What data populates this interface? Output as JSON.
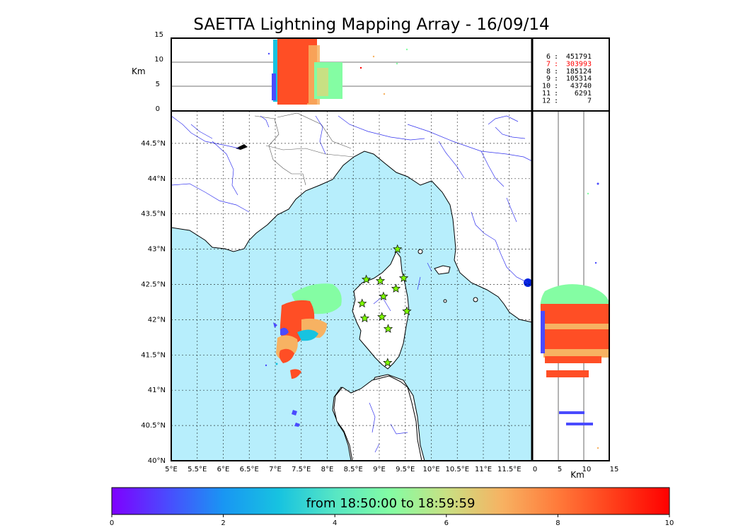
{
  "title": "SAETTA Lightning Mapping Array - 16/09/14",
  "alt_panel": {
    "ylabel": "Km",
    "yticks": [
      "15",
      "10",
      "5",
      "0"
    ]
  },
  "side_panel": {
    "xlabel": "Km",
    "xticks": [
      "0",
      "5",
      "10",
      "15"
    ]
  },
  "station_counts": [
    {
      "stations": "6",
      "count": "451791",
      "color": "#000000"
    },
    {
      "stations": "7",
      "count": "303993",
      "color": "#ff0000"
    },
    {
      "stations": "8",
      "count": "185124",
      "color": "#000000"
    },
    {
      "stations": "9",
      "count": "105314",
      "color": "#000000"
    },
    {
      "stations": "10",
      "count": "43740",
      "color": "#000000"
    },
    {
      "stations": "11",
      "count": "6291",
      "color": "#000000"
    },
    {
      "stations": "12",
      "count": "7",
      "color": "#000000"
    }
  ],
  "map": {
    "lon_ticks": [
      "5°E",
      "5.5°E",
      "6°E",
      "6.5°E",
      "7°E",
      "7.5°E",
      "8°E",
      "8.5°E",
      "9°E",
      "9.5°E",
      "10°E",
      "10.5°E",
      "11°E",
      "11.5°E"
    ],
    "lat_ticks": [
      "44.5°N",
      "44°N",
      "43.5°N",
      "43°N",
      "42.5°N",
      "42°N",
      "41.5°N",
      "41°N",
      "40.5°N",
      "40°N"
    ],
    "sea_color": "#b7eefc",
    "station_color": "#7fff00",
    "stations": [
      {
        "lon": 9.35,
        "lat": 43.0
      },
      {
        "lon": 8.75,
        "lat": 42.57
      },
      {
        "lon": 9.02,
        "lat": 42.55
      },
      {
        "lon": 9.47,
        "lat": 42.59
      },
      {
        "lon": 9.32,
        "lat": 42.44
      },
      {
        "lon": 9.08,
        "lat": 42.33
      },
      {
        "lon": 8.67,
        "lat": 42.23
      },
      {
        "lon": 9.53,
        "lat": 42.12
      },
      {
        "lon": 8.72,
        "lat": 42.02
      },
      {
        "lon": 9.05,
        "lat": 42.04
      },
      {
        "lon": 9.17,
        "lat": 41.87
      },
      {
        "lon": 9.16,
        "lat": 41.39
      }
    ]
  },
  "colorbar": {
    "label": "from 18:50:00 to 18:59:59",
    "ticks": [
      "0",
      "2",
      "4",
      "6",
      "8",
      "10"
    ],
    "colors": [
      "#7f00ff",
      "#4a4bfe",
      "#1996f3",
      "#17c3e0",
      "#57e6c4",
      "#84fda3",
      "#c8e083",
      "#f7b262",
      "#ff7a3a",
      "#ff3e1a",
      "#ff0000"
    ]
  }
}
